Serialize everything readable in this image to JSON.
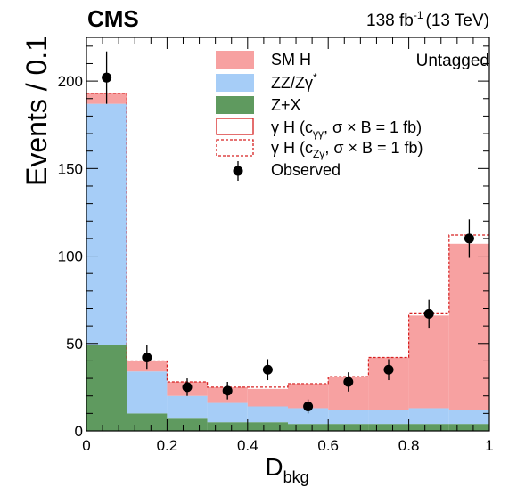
{
  "chart_data": {
    "type": "bar",
    "header": {
      "experiment": "CMS",
      "lumi_value": "138 fb",
      "lumi_exp": "-1",
      "energy": "(13 TeV)",
      "category": "Untagged"
    },
    "xlabel_main": "D",
    "xlabel_sub": "bkg",
    "ylabel": "Events / 0.1",
    "xlim": [
      0,
      1
    ],
    "ylim": [
      0,
      225
    ],
    "x_ticks": [
      "0",
      "0.2",
      "0.4",
      "0.6",
      "0.8",
      "1"
    ],
    "y_ticks": [
      "0",
      "50",
      "100",
      "150",
      "200"
    ],
    "bin_edges": [
      0,
      0.1,
      0.2,
      0.3,
      0.4,
      0.5,
      0.6,
      0.7,
      0.8,
      0.9,
      1.0
    ],
    "stack": [
      {
        "name": "Z+X",
        "color": "#5f9a5f",
        "values": [
          49,
          10,
          7,
          5,
          5,
          4,
          4,
          4,
          4,
          4
        ]
      },
      {
        "name": "ZZ/Zγ*",
        "color": "#a6cdf7",
        "values": [
          138,
          24,
          13,
          11,
          9,
          9,
          8,
          8,
          9,
          8
        ]
      },
      {
        "name": "SM H",
        "color": "#f7a1a1",
        "values": [
          6,
          6,
          8,
          9,
          10,
          14,
          19,
          30,
          53,
          95
        ]
      }
    ],
    "gamma_h_czgamma_line": [
      193,
      40,
      28,
      25,
      25,
      27,
      31,
      42,
      67,
      112
    ],
    "observed": {
      "x": [
        0.05,
        0.15,
        0.25,
        0.35,
        0.45,
        0.55,
        0.65,
        0.75,
        0.85,
        0.95
      ],
      "y": [
        202,
        42,
        25,
        23,
        35,
        14,
        28,
        35,
        67,
        110
      ],
      "err": [
        15,
        7,
        5,
        5,
        6,
        4,
        5.5,
        6,
        8,
        11
      ]
    },
    "legend": {
      "sm_h": "SM H",
      "zz": "ZZ/Zγ",
      "zz_sup": "*",
      "zx": "Z+X",
      "gh1_pre": "γ H (c",
      "gh1_sub": "γγ",
      "gh1_post": ", σ × B = 1 fb)",
      "gh2_pre": "γ H (c",
      "gh2_sub": "Zγ",
      "gh2_post": ", σ × B = 1 fb)",
      "observed": "Observed"
    },
    "colors": {
      "signal_line": "#d62020",
      "marker": "#000000"
    }
  }
}
